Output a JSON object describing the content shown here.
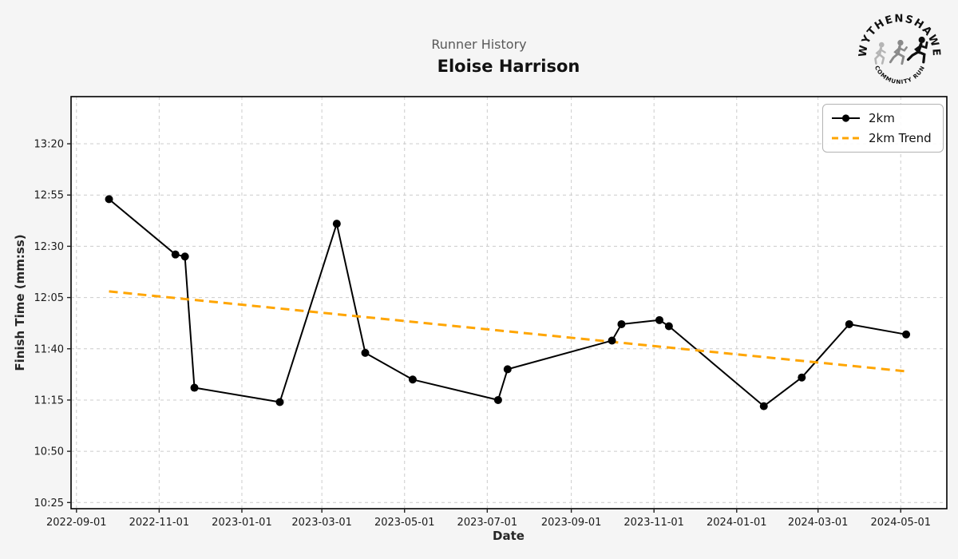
{
  "header": {
    "subtitle": "Runner History",
    "title": "Eloise Harrison"
  },
  "logo": {
    "top_text": "WYTHENSHAWE",
    "bottom_text": "COMMUNITY RUN"
  },
  "legend": {
    "items": [
      "2km",
      "2km Trend"
    ]
  },
  "axes": {
    "xlabel": "Date",
    "ylabel": "Finish Time (mm:ss)"
  },
  "colors": {
    "series": "#000000",
    "trend": "#FFA500",
    "figure_background": "#f5f5f5",
    "plot_background": "#ffffff",
    "gridline": "#cccccc",
    "subtitle_text": "#595959"
  },
  "chart_data": {
    "type": "line",
    "title": "Runner History",
    "subtitle": "Eloise Harrison",
    "xlabel": "Date",
    "ylabel": "Finish Time (mm:ss)",
    "grid": true,
    "legend_position": "upper right",
    "xlim": [
      "2022-08-28",
      "2024-06-04"
    ],
    "ylim_seconds": [
      622,
      823
    ],
    "x_ticks": [
      "2022-09-01",
      "2022-11-01",
      "2023-01-01",
      "2023-03-01",
      "2023-05-01",
      "2023-07-01",
      "2023-09-01",
      "2023-11-01",
      "2024-01-01",
      "2024-03-01",
      "2024-05-01"
    ],
    "y_ticks": [
      "13:20",
      "12:55",
      "12:30",
      "12:05",
      "11:40",
      "11:15",
      "10:50",
      "10:25"
    ],
    "series": [
      {
        "name": "2km",
        "color": "#000000",
        "style": "solid-with-markers",
        "points": [
          {
            "date": "2022-09-25",
            "time": "12:53"
          },
          {
            "date": "2022-11-13",
            "time": "12:26"
          },
          {
            "date": "2022-11-20",
            "time": "12:25"
          },
          {
            "date": "2022-11-27",
            "time": "11:21"
          },
          {
            "date": "2023-01-29",
            "time": "11:14"
          },
          {
            "date": "2023-03-12",
            "time": "12:41"
          },
          {
            "date": "2023-04-02",
            "time": "11:38"
          },
          {
            "date": "2023-05-07",
            "time": "11:25"
          },
          {
            "date": "2023-07-09",
            "time": "11:15"
          },
          {
            "date": "2023-07-16",
            "time": "11:30"
          },
          {
            "date": "2023-10-01",
            "time": "11:44"
          },
          {
            "date": "2023-10-08",
            "time": "11:52"
          },
          {
            "date": "2023-11-05",
            "time": "11:54"
          },
          {
            "date": "2023-11-12",
            "time": "11:51"
          },
          {
            "date": "2024-01-21",
            "time": "11:12"
          },
          {
            "date": "2024-02-18",
            "time": "11:26"
          },
          {
            "date": "2024-03-24",
            "time": "11:52"
          },
          {
            "date": "2024-05-05",
            "time": "11:47"
          }
        ]
      },
      {
        "name": "2km Trend",
        "color": "#FFA500",
        "style": "dashed",
        "points": [
          {
            "date": "2022-09-25",
            "time": "12:08"
          },
          {
            "date": "2024-05-05",
            "time": "11:29"
          }
        ]
      }
    ]
  }
}
